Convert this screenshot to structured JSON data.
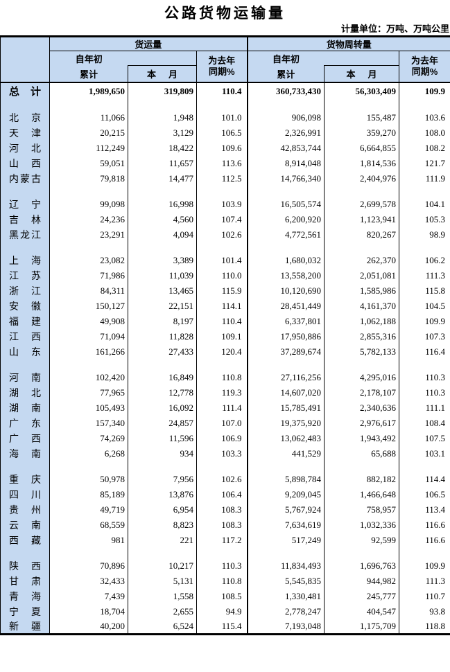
{
  "title": "公路货物运输量",
  "unit_note": "计量单位：万吨、万吨公里",
  "colors": {
    "header_blue": "#C5D9F1",
    "border_black": "#000000"
  },
  "table": {
    "header": {
      "freight_group": "货运量",
      "turnover_group": "货物周转量",
      "since_start_of_year": "自年初",
      "cumulative": "累计",
      "current_month": "本月",
      "yoy_line1": "为去年",
      "yoy_line2": "同期%"
    },
    "total_row": {
      "name": "总计",
      "values": [
        "1,989,650",
        "319,809",
        "110.4",
        "360,733,430",
        "56,303,409",
        "109.9"
      ]
    },
    "groups": [
      [
        {
          "name": "北京",
          "values": [
            "11,066",
            "1,948",
            "101.0",
            "906,098",
            "155,487",
            "103.6"
          ]
        },
        {
          "name": "天津",
          "values": [
            "20,215",
            "3,129",
            "106.5",
            "2,326,991",
            "359,270",
            "108.0"
          ]
        },
        {
          "name": "河北",
          "values": [
            "112,249",
            "18,422",
            "109.6",
            "42,853,744",
            "6,664,855",
            "108.2"
          ]
        },
        {
          "name": "山西",
          "values": [
            "59,051",
            "11,657",
            "113.6",
            "8,914,048",
            "1,814,536",
            "121.7"
          ]
        },
        {
          "name": "内蒙古",
          "values": [
            "79,818",
            "14,477",
            "112.5",
            "14,766,340",
            "2,404,976",
            "111.9"
          ]
        }
      ],
      [
        {
          "name": "辽宁",
          "values": [
            "99,098",
            "16,998",
            "103.9",
            "16,505,574",
            "2,699,578",
            "104.1"
          ]
        },
        {
          "name": "吉林",
          "values": [
            "24,236",
            "4,560",
            "107.4",
            "6,200,920",
            "1,123,941",
            "105.3"
          ]
        },
        {
          "name": "黑龙江",
          "values": [
            "23,291",
            "4,094",
            "102.6",
            "4,772,561",
            "820,267",
            "98.9"
          ]
        }
      ],
      [
        {
          "name": "上海",
          "values": [
            "23,082",
            "3,389",
            "101.4",
            "1,680,032",
            "262,370",
            "106.2"
          ]
        },
        {
          "name": "江苏",
          "values": [
            "71,986",
            "11,039",
            "110.0",
            "13,558,200",
            "2,051,081",
            "111.3"
          ]
        },
        {
          "name": "浙江",
          "values": [
            "84,311",
            "13,465",
            "115.9",
            "10,120,690",
            "1,585,986",
            "115.8"
          ]
        },
        {
          "name": "安徽",
          "values": [
            "150,127",
            "22,151",
            "114.1",
            "28,451,449",
            "4,161,370",
            "104.5"
          ]
        },
        {
          "name": "福建",
          "values": [
            "49,908",
            "8,197",
            "110.4",
            "6,337,801",
            "1,062,188",
            "109.9"
          ]
        },
        {
          "name": "江西",
          "values": [
            "71,094",
            "11,828",
            "109.1",
            "17,950,886",
            "2,855,316",
            "107.3"
          ]
        },
        {
          "name": "山东",
          "values": [
            "161,266",
            "27,433",
            "120.4",
            "37,289,674",
            "5,782,133",
            "116.4"
          ]
        }
      ],
      [
        {
          "name": "河南",
          "values": [
            "102,420",
            "16,849",
            "110.8",
            "27,116,256",
            "4,295,016",
            "110.3"
          ]
        },
        {
          "name": "湖北",
          "values": [
            "77,965",
            "12,778",
            "119.3",
            "14,607,020",
            "2,178,107",
            "110.3"
          ]
        },
        {
          "name": "湖南",
          "values": [
            "105,493",
            "16,092",
            "111.4",
            "15,785,491",
            "2,340,636",
            "111.1"
          ]
        },
        {
          "name": "广东",
          "values": [
            "157,340",
            "24,857",
            "107.0",
            "19,375,920",
            "2,976,617",
            "108.4"
          ]
        },
        {
          "name": "广西",
          "values": [
            "74,269",
            "11,596",
            "106.9",
            "13,062,483",
            "1,943,492",
            "107.5"
          ]
        },
        {
          "name": "海南",
          "values": [
            "6,268",
            "934",
            "103.3",
            "441,529",
            "65,688",
            "103.1"
          ]
        }
      ],
      [
        {
          "name": "重庆",
          "values": [
            "50,978",
            "7,956",
            "102.6",
            "5,898,784",
            "882,182",
            "114.4"
          ]
        },
        {
          "name": "四川",
          "values": [
            "85,189",
            "13,876",
            "106.4",
            "9,209,045",
            "1,466,648",
            "106.5"
          ]
        },
        {
          "name": "贵州",
          "values": [
            "49,719",
            "6,954",
            "108.3",
            "5,767,924",
            "758,957",
            "113.4"
          ]
        },
        {
          "name": "云南",
          "values": [
            "68,559",
            "8,823",
            "108.3",
            "7,634,619",
            "1,032,336",
            "116.6"
          ]
        },
        {
          "name": "西藏",
          "values": [
            "981",
            "221",
            "117.2",
            "517,249",
            "92,599",
            "116.6"
          ]
        }
      ],
      [
        {
          "name": "陕西",
          "values": [
            "70,896",
            "10,217",
            "110.3",
            "11,834,493",
            "1,696,763",
            "109.9"
          ]
        },
        {
          "name": "甘肃",
          "values": [
            "32,433",
            "5,131",
            "110.8",
            "5,545,835",
            "944,982",
            "111.3"
          ]
        },
        {
          "name": "青海",
          "values": [
            "7,439",
            "1,558",
            "108.5",
            "1,330,481",
            "245,777",
            "110.7"
          ]
        },
        {
          "name": "宁夏",
          "values": [
            "18,704",
            "2,655",
            "94.9",
            "2,778,247",
            "404,547",
            "93.8"
          ]
        },
        {
          "name": "新疆",
          "values": [
            "40,200",
            "6,524",
            "115.4",
            "7,193,048",
            "1,175,709",
            "118.8"
          ]
        }
      ]
    ]
  }
}
